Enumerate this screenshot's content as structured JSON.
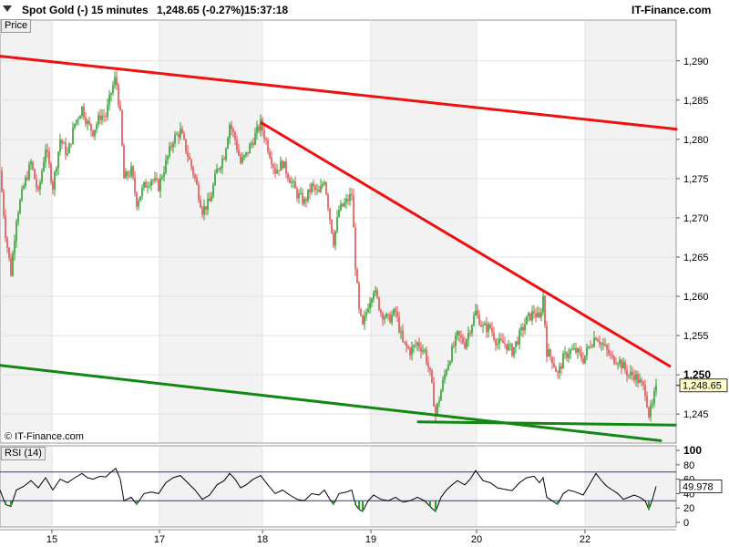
{
  "header": {
    "instrument": "Spot Gold (-)",
    "interval": "15 minutes",
    "quote": "1,248.65 (-0.27%)",
    "time": "15:37:18",
    "brand": "IT-Finance.com"
  },
  "labels": {
    "price": "Price",
    "rsi": "RSI (14)",
    "copyright": "© IT-Finance.com"
  },
  "colors": {
    "up_candle": "#2ca02c",
    "down_candle": "#e05050",
    "resistance_line": "#ee1111",
    "support_line": "#118811",
    "rsi_line": "#000000",
    "rsi_bands": "#3333aa",
    "current_price_label_bg": "#ffffcc",
    "weekend_shade": "#f2f2f2"
  },
  "chart_data": [
    {
      "type": "candlestick",
      "title": "Spot Gold (-)",
      "interval": "15 minutes",
      "x_tick_labels": [
        "15",
        "17",
        "18",
        "19",
        "20",
        "22"
      ],
      "y_ticks": [
        1245,
        1250,
        1255,
        1260,
        1265,
        1270,
        1275,
        1280,
        1285,
        1290
      ],
      "y_tick_labels": [
        "1,245",
        "1,250",
        "1,255",
        "1,260",
        "1,265",
        "1,270",
        "1,275",
        "1,280",
        "1,285",
        "1,290"
      ],
      "y_highlight_tick": "1,250",
      "ylim": [
        1241.3,
        1295.2
      ],
      "current_price": 1248.65,
      "current_price_label": "1,248.65",
      "close_path": [
        [
          0,
          1276
        ],
        [
          6,
          1268
        ],
        [
          12,
          1263
        ],
        [
          18,
          1270
        ],
        [
          26,
          1274
        ],
        [
          34,
          1277
        ],
        [
          42,
          1273
        ],
        [
          50,
          1279
        ],
        [
          58,
          1274
        ],
        [
          66,
          1280
        ],
        [
          74,
          1278
        ],
        [
          82,
          1282
        ],
        [
          90,
          1284
        ],
        [
          96,
          1282
        ],
        [
          102,
          1281
        ],
        [
          110,
          1283
        ],
        [
          116,
          1283
        ],
        [
          122,
          1286
        ],
        [
          127,
          1288
        ],
        [
          132,
          1283
        ],
        [
          136,
          1275
        ],
        [
          144,
          1276
        ],
        [
          150,
          1272
        ],
        [
          158,
          1274
        ],
        [
          166,
          1275
        ],
        [
          174,
          1274
        ],
        [
          182,
          1277
        ],
        [
          190,
          1280
        ],
        [
          198,
          1281
        ],
        [
          206,
          1278
        ],
        [
          214,
          1275
        ],
        [
          222,
          1271
        ],
        [
          230,
          1272
        ],
        [
          238,
          1276
        ],
        [
          246,
          1278
        ],
        [
          252,
          1282
        ],
        [
          258,
          1280
        ],
        [
          264,
          1277
        ],
        [
          270,
          1278
        ],
        [
          278,
          1280
        ],
        [
          286,
          1282
        ],
        [
          294,
          1279
        ],
        [
          302,
          1276
        ],
        [
          310,
          1277
        ],
        [
          318,
          1275
        ],
        [
          326,
          1273
        ],
        [
          334,
          1272
        ],
        [
          342,
          1274
        ],
        [
          350,
          1273
        ],
        [
          356,
          1275
        ],
        [
          362,
          1270
        ],
        [
          366,
          1267
        ],
        [
          372,
          1271
        ],
        [
          380,
          1272
        ],
        [
          386,
          1273
        ],
        [
          390,
          1264
        ],
        [
          394,
          1258
        ],
        [
          398,
          1256
        ],
        [
          404,
          1259
        ],
        [
          410,
          1261
        ],
        [
          418,
          1258
        ],
        [
          426,
          1257
        ],
        [
          434,
          1258
        ],
        [
          442,
          1254
        ],
        [
          450,
          1253
        ],
        [
          458,
          1254
        ],
        [
          466,
          1253
        ],
        [
          472,
          1250
        ],
        [
          478,
          1245
        ],
        [
          484,
          1248
        ],
        [
          490,
          1251
        ],
        [
          496,
          1253
        ],
        [
          502,
          1255
        ],
        [
          510,
          1254
        ],
        [
          516,
          1256
        ],
        [
          522,
          1258
        ],
        [
          530,
          1256
        ],
        [
          538,
          1256
        ],
        [
          546,
          1254
        ],
        [
          554,
          1254
        ],
        [
          562,
          1253
        ],
        [
          570,
          1255
        ],
        [
          578,
          1257
        ],
        [
          586,
          1258
        ],
        [
          592,
          1257
        ],
        [
          596,
          1260
        ],
        [
          600,
          1253
        ],
        [
          606,
          1252
        ],
        [
          612,
          1250
        ],
        [
          618,
          1252
        ],
        [
          624,
          1253
        ],
        [
          632,
          1253
        ],
        [
          640,
          1252
        ],
        [
          648,
          1254
        ],
        [
          654,
          1255
        ],
        [
          660,
          1254
        ],
        [
          666,
          1253
        ],
        [
          672,
          1252
        ],
        [
          678,
          1252
        ],
        [
          684,
          1251
        ],
        [
          690,
          1250
        ],
        [
          696,
          1250
        ],
        [
          702,
          1249
        ],
        [
          708,
          1248
        ],
        [
          712,
          1245
        ],
        [
          716,
          1246
        ],
        [
          720,
          1248.65
        ]
      ],
      "trendlines": [
        {
          "role": "resistance",
          "from": [
            0,
            1290.6
          ],
          "to": [
            742,
            1281.3
          ]
        },
        {
          "role": "resistance",
          "from": [
            287,
            1282.1
          ],
          "to": [
            735,
            1251.1
          ]
        },
        {
          "role": "support",
          "from": [
            0,
            1251.2
          ],
          "to": [
            725,
            1241.6
          ]
        },
        {
          "role": "support",
          "from": [
            459,
            1244.0
          ],
          "to": [
            741,
            1243.6
          ]
        }
      ]
    },
    {
      "type": "line",
      "title": "RSI (14)",
      "y_tick_labels": [
        "100",
        "80",
        "60",
        "40",
        "20",
        "0"
      ],
      "y_ticks": [
        100,
        80,
        60,
        40,
        20,
        0
      ],
      "ylim": [
        0,
        100
      ],
      "bands": [
        30,
        70
      ],
      "current_value": 49.978,
      "current_value_label": "49.978",
      "rsi_path": [
        [
          0,
          45
        ],
        [
          6,
          25
        ],
        [
          12,
          22
        ],
        [
          18,
          45
        ],
        [
          26,
          50
        ],
        [
          34,
          58
        ],
        [
          42,
          48
        ],
        [
          50,
          62
        ],
        [
          58,
          45
        ],
        [
          66,
          60
        ],
        [
          74,
          55
        ],
        [
          82,
          62
        ],
        [
          90,
          68
        ],
        [
          96,
          62
        ],
        [
          102,
          60
        ],
        [
          110,
          64
        ],
        [
          116,
          63
        ],
        [
          122,
          70
        ],
        [
          127,
          75
        ],
        [
          132,
          60
        ],
        [
          136,
          30
        ],
        [
          144,
          35
        ],
        [
          150,
          25
        ],
        [
          158,
          40
        ],
        [
          166,
          42
        ],
        [
          174,
          40
        ],
        [
          182,
          55
        ],
        [
          190,
          62
        ],
        [
          198,
          65
        ],
        [
          206,
          55
        ],
        [
          214,
          45
        ],
        [
          222,
          32
        ],
        [
          230,
          38
        ],
        [
          238,
          52
        ],
        [
          246,
          58
        ],
        [
          252,
          68
        ],
        [
          258,
          60
        ],
        [
          264,
          48
        ],
        [
          270,
          52
        ],
        [
          278,
          60
        ],
        [
          286,
          65
        ],
        [
          294,
          52
        ],
        [
          302,
          40
        ],
        [
          310,
          45
        ],
        [
          318,
          38
        ],
        [
          326,
          32
        ],
        [
          334,
          30
        ],
        [
          342,
          40
        ],
        [
          350,
          38
        ],
        [
          356,
          45
        ],
        [
          362,
          32
        ],
        [
          366,
          25
        ],
        [
          372,
          40
        ],
        [
          380,
          42
        ],
        [
          386,
          45
        ],
        [
          390,
          25
        ],
        [
          394,
          18
        ],
        [
          398,
          15
        ],
        [
          404,
          30
        ],
        [
          410,
          38
        ],
        [
          418,
          32
        ],
        [
          426,
          30
        ],
        [
          434,
          35
        ],
        [
          442,
          28
        ],
        [
          450,
          30
        ],
        [
          458,
          35
        ],
        [
          466,
          30
        ],
        [
          472,
          22
        ],
        [
          478,
          15
        ],
        [
          484,
          35
        ],
        [
          490,
          45
        ],
        [
          496,
          52
        ],
        [
          502,
          58
        ],
        [
          510,
          52
        ],
        [
          516,
          60
        ],
        [
          522,
          72
        ],
        [
          530,
          58
        ],
        [
          538,
          55
        ],
        [
          546,
          48
        ],
        [
          554,
          46
        ],
        [
          562,
          44
        ],
        [
          570,
          55
        ],
        [
          578,
          62
        ],
        [
          586,
          64
        ],
        [
          592,
          55
        ],
        [
          596,
          62
        ],
        [
          600,
          35
        ],
        [
          606,
          30
        ],
        [
          612,
          25
        ],
        [
          618,
          40
        ],
        [
          624,
          45
        ],
        [
          632,
          42
        ],
        [
          640,
          38
        ],
        [
          648,
          55
        ],
        [
          654,
          68
        ],
        [
          660,
          58
        ],
        [
          666,
          50
        ],
        [
          672,
          45
        ],
        [
          678,
          40
        ],
        [
          684,
          32
        ],
        [
          690,
          35
        ],
        [
          696,
          38
        ],
        [
          702,
          35
        ],
        [
          708,
          30
        ],
        [
          712,
          18
        ],
        [
          716,
          32
        ],
        [
          720,
          49.978
        ]
      ]
    }
  ]
}
